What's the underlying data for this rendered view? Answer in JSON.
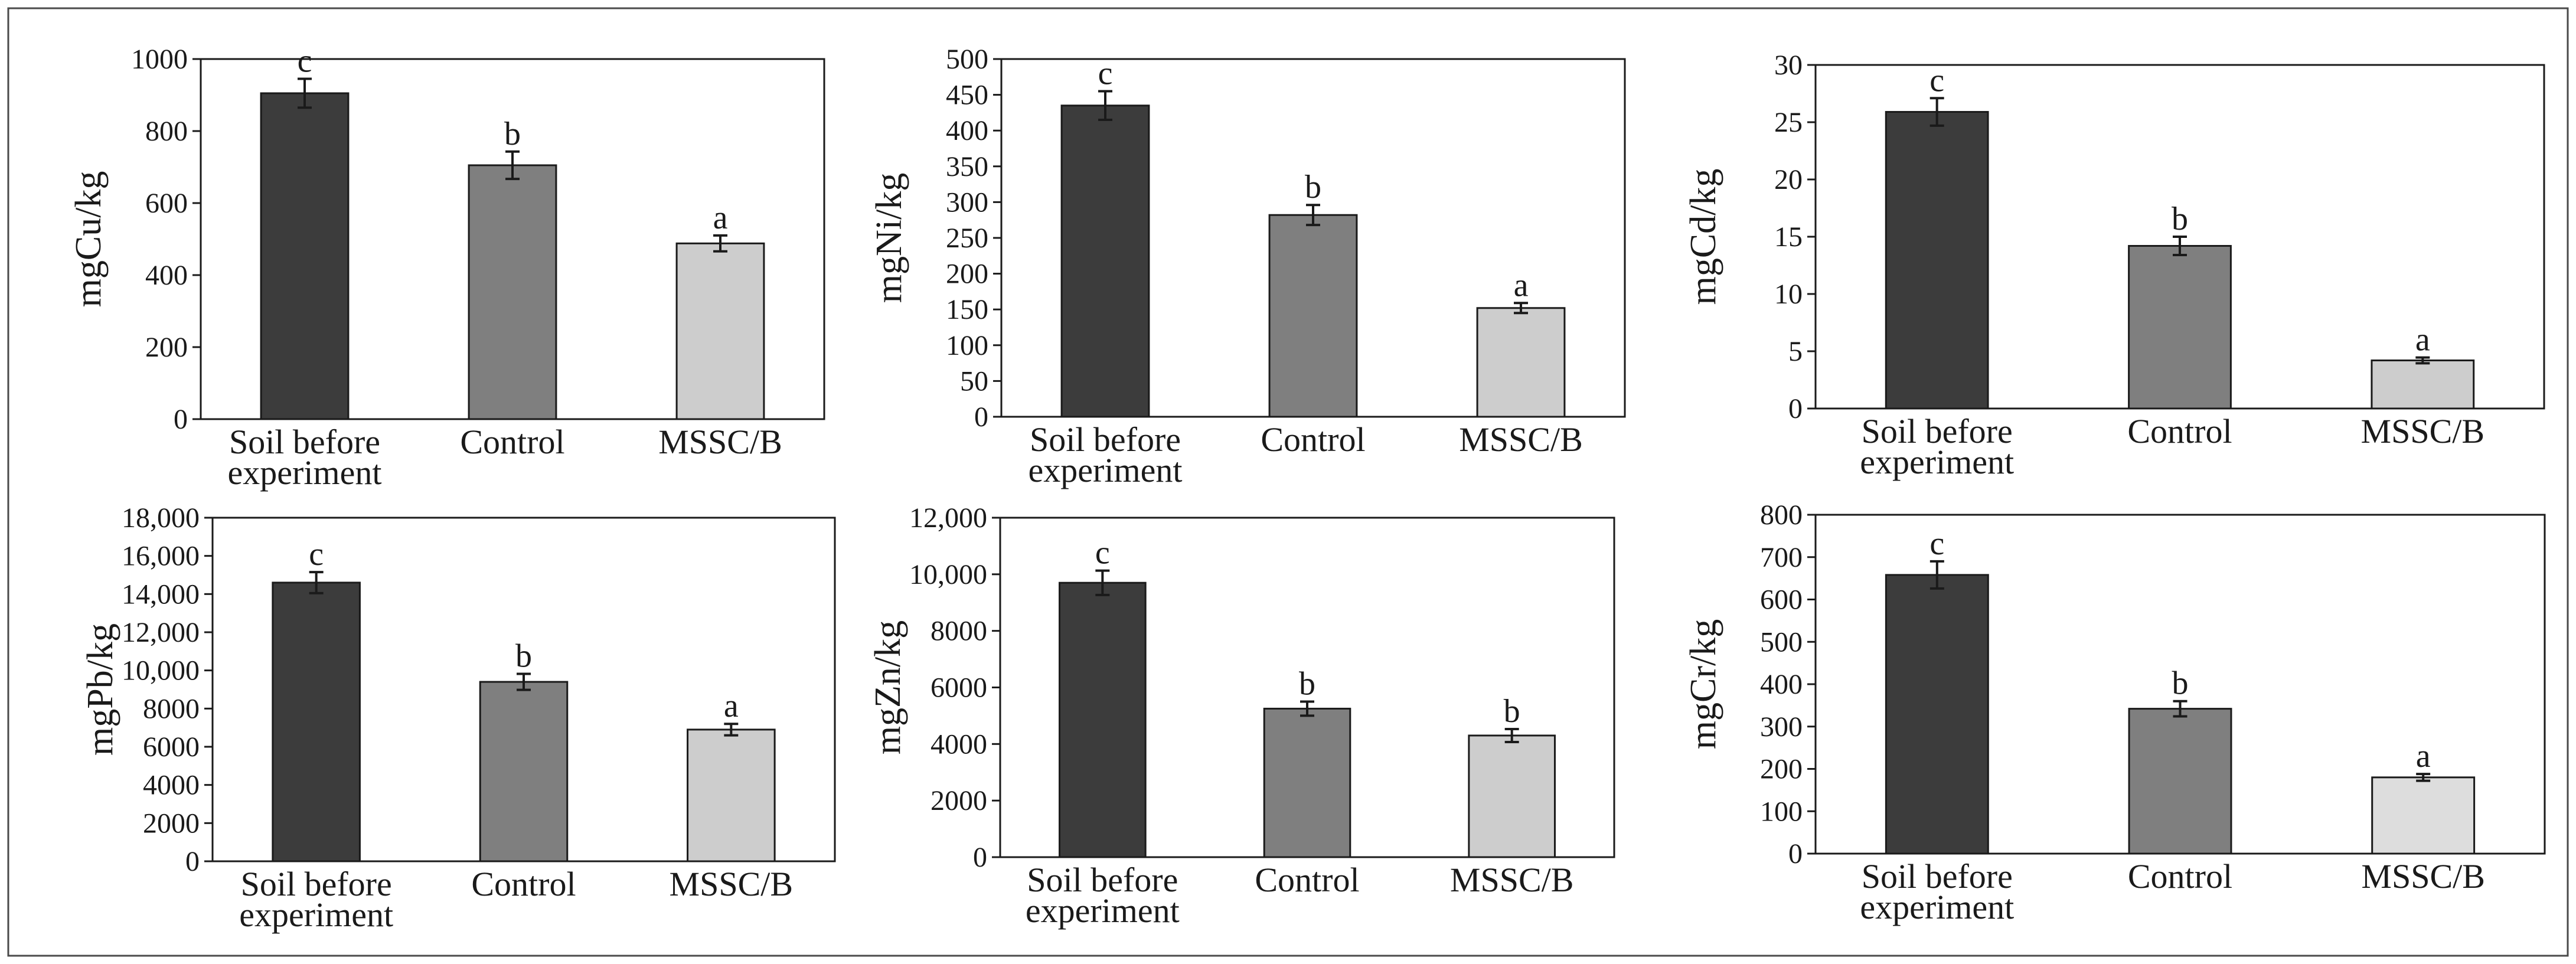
{
  "chart_data": [
    {
      "type": "bar",
      "title": "",
      "xlabel": "",
      "ylabel": "mgCu/kg",
      "ylim": [
        0,
        1000
      ],
      "yticks": [
        0,
        200,
        400,
        600,
        800,
        1000
      ],
      "ytick_labels": [
        "0",
        "200",
        "400",
        "600",
        "800",
        "1000"
      ],
      "categories": [
        "Soil before experiment",
        "Control",
        "MSSC/B"
      ],
      "category_lines": [
        [
          "Soil before",
          "experiment"
        ],
        [
          "Control"
        ],
        [
          "MSSC/B"
        ]
      ],
      "values": [
        905,
        705,
        488
      ],
      "errors": [
        40,
        38,
        22
      ],
      "significance": [
        "c",
        "b",
        "a"
      ],
      "colors": [
        "#3c3c3c",
        "#7f7f7f",
        "#cdcdcd"
      ]
    },
    {
      "type": "bar",
      "title": "",
      "xlabel": "",
      "ylabel": "mgNi/kg",
      "ylim": [
        0,
        500
      ],
      "yticks": [
        0,
        50,
        100,
        150,
        200,
        250,
        300,
        350,
        400,
        450,
        500
      ],
      "ytick_labels": [
        "0",
        "50",
        "100",
        "150",
        "200",
        "250",
        "300",
        "350",
        "400",
        "450",
        "500"
      ],
      "categories": [
        "Soil before experiment",
        "Control",
        "MSSC/B"
      ],
      "category_lines": [
        [
          "Soil before",
          "experiment"
        ],
        [
          "Control"
        ],
        [
          "MSSC/B"
        ]
      ],
      "values": [
        435,
        282,
        152
      ],
      "errors": [
        20,
        14,
        7
      ],
      "significance": [
        "c",
        "b",
        "a"
      ],
      "colors": [
        "#3c3c3c",
        "#7f7f7f",
        "#cdcdcd"
      ]
    },
    {
      "type": "bar",
      "title": "",
      "xlabel": "",
      "ylabel": "mgCd/kg",
      "ylim": [
        0,
        30
      ],
      "yticks": [
        0,
        5,
        10,
        15,
        20,
        25,
        30
      ],
      "ytick_labels": [
        "0",
        "5",
        "10",
        "15",
        "20",
        "25",
        "30"
      ],
      "categories": [
        "Soil before experiment",
        "Control",
        "MSSC/B"
      ],
      "category_lines": [
        [
          "Soil before",
          "experiment"
        ],
        [
          "Control"
        ],
        [
          "MSSC/B"
        ]
      ],
      "values": [
        25.9,
        14.2,
        4.2
      ],
      "errors": [
        1.2,
        0.8,
        0.25
      ],
      "significance": [
        "c",
        "b",
        "a"
      ],
      "colors": [
        "#3c3c3c",
        "#7f7f7f",
        "#cdcdcd"
      ]
    },
    {
      "type": "bar",
      "title": "",
      "xlabel": "",
      "ylabel": "mgPb/kg",
      "ylim": [
        0,
        18000
      ],
      "yticks": [
        0,
        2000,
        4000,
        6000,
        8000,
        10000,
        12000,
        14000,
        16000,
        18000
      ],
      "ytick_labels": [
        "0",
        "2000",
        "4000",
        "6000",
        "8000",
        "10,000",
        "12,000",
        "14,000",
        "16,000",
        "18,000"
      ],
      "categories": [
        "Soil before experiment",
        "Control",
        "MSSC/B"
      ],
      "category_lines": [
        [
          "Soil before",
          "experiment"
        ],
        [
          "Control"
        ],
        [
          "MSSC/B"
        ]
      ],
      "values": [
        14600,
        9400,
        6900
      ],
      "errors": [
        550,
        420,
        300
      ],
      "significance": [
        "c",
        "b",
        "a"
      ],
      "colors": [
        "#3c3c3c",
        "#7f7f7f",
        "#cdcdcd"
      ]
    },
    {
      "type": "bar",
      "title": "",
      "xlabel": "",
      "ylabel": "mgZn/kg",
      "ylim": [
        0,
        12000
      ],
      "yticks": [
        0,
        2000,
        4000,
        6000,
        8000,
        10000,
        12000
      ],
      "ytick_labels": [
        "0",
        "2000",
        "4000",
        "6000",
        "8000",
        "10,000",
        "12,000"
      ],
      "categories": [
        "Soil before experiment",
        "Control",
        "MSSC/B"
      ],
      "category_lines": [
        [
          "Soil before",
          "experiment"
        ],
        [
          "Control"
        ],
        [
          "MSSC/B"
        ]
      ],
      "values": [
        9700,
        5250,
        4300
      ],
      "errors": [
        430,
        250,
        230
      ],
      "significance": [
        "c",
        "b",
        "b"
      ],
      "colors": [
        "#3c3c3c",
        "#7f7f7f",
        "#cdcdcd"
      ]
    },
    {
      "type": "bar",
      "title": "",
      "xlabel": "",
      "ylabel": "mgCr/kg",
      "ylim": [
        0,
        800
      ],
      "yticks": [
        0,
        100,
        200,
        300,
        400,
        500,
        600,
        700,
        800
      ],
      "ytick_labels": [
        "0",
        "100",
        "200",
        "300",
        "400",
        "500",
        "600",
        "700",
        "800"
      ],
      "categories": [
        "Soil before experiment",
        "Control",
        "MSSC/B"
      ],
      "category_lines": [
        [
          "Soil before",
          "experiment"
        ],
        [
          "Control"
        ],
        [
          "MSSC/B"
        ]
      ],
      "values": [
        658,
        342,
        180
      ],
      "errors": [
        32,
        18,
        8
      ],
      "significance": [
        "c",
        "b",
        "a"
      ],
      "colors": [
        "#3c3c3c",
        "#7f7f7f",
        "#dddddd"
      ]
    }
  ]
}
